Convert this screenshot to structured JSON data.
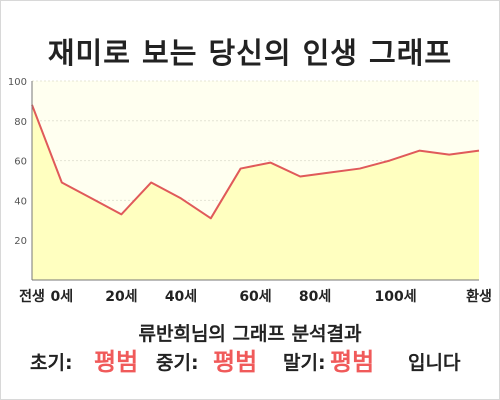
{
  "page": {
    "title": "재미로 보는 당신의 인생 그래프",
    "result_title": "류반희님의 그래프 분석결과"
  },
  "summary": {
    "early_label": "초기:",
    "early_value": "평범",
    "middle_label": "중기:",
    "middle_value": "평범",
    "late_label": "말기:",
    "late_value": "평범",
    "suffix": "입니다"
  },
  "colors": {
    "line": "#e05a5a",
    "fill": "#ffffc0",
    "plot_bg": "#fffff0",
    "highlight": "#f05a5a"
  },
  "chart_data": {
    "type": "area",
    "title": "재미로 보는 당신의 인생 그래프",
    "x_positions": [
      0,
      1,
      2,
      3,
      4,
      5,
      6,
      7,
      8,
      9,
      10,
      11,
      12,
      13,
      14,
      15
    ],
    "y": [
      88,
      49,
      41,
      33,
      49,
      41,
      31,
      56,
      59,
      52,
      54,
      56,
      60,
      65,
      63,
      65
    ],
    "x_ticks": [
      {
        "pos": 0,
        "label": "전생"
      },
      {
        "pos": 1,
        "label": "0세"
      },
      {
        "pos": 3,
        "label": "20세"
      },
      {
        "pos": 5,
        "label": "40세"
      },
      {
        "pos": 7.5,
        "label": "60세"
      },
      {
        "pos": 9.5,
        "label": "80세"
      },
      {
        "pos": 12.2,
        "label": "100세"
      },
      {
        "pos": 15,
        "label": "환생"
      }
    ],
    "ylim": [
      0,
      100
    ],
    "y_ticks": [
      20,
      40,
      60,
      80,
      100
    ],
    "grid": true,
    "legend": "none"
  }
}
